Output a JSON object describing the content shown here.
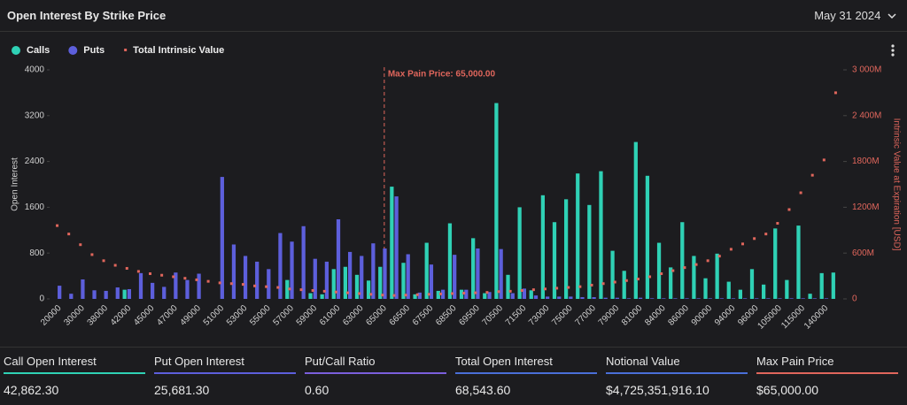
{
  "header": {
    "title": "Open Interest By Strike Price",
    "date": "May 31 2024"
  },
  "chart_data": {
    "type": "bar",
    "categories": [
      "20000",
      null,
      "30000",
      null,
      "38000",
      null,
      "42000",
      null,
      "45000",
      null,
      "47000",
      null,
      "49000",
      null,
      "51000",
      null,
      "53000",
      null,
      "55000",
      null,
      "57000",
      null,
      "59000",
      null,
      "61000",
      null,
      "63000",
      null,
      "65000",
      null,
      "66500",
      null,
      "67500",
      null,
      "68500",
      null,
      "69500",
      null,
      "70500",
      null,
      "71500",
      null,
      "73000",
      null,
      "75000",
      null,
      "77000",
      null,
      "79000",
      null,
      "81000",
      null,
      "84000",
      null,
      "86000",
      null,
      "90000",
      null,
      "94000",
      null,
      "96000",
      null,
      "105000",
      null,
      "115000",
      null,
      "140000",
      null
    ],
    "series": [
      {
        "name": "Calls",
        "color": "#2fd1b5",
        "values": [
          0,
          0,
          0,
          0,
          0,
          0,
          160,
          0,
          0,
          0,
          0,
          0,
          0,
          0,
          0,
          0,
          0,
          0,
          0,
          0,
          330,
          0,
          100,
          80,
          520,
          560,
          420,
          320,
          560,
          1960,
          630,
          80,
          980,
          140,
          1320,
          160,
          1060,
          100,
          3420,
          420,
          1600,
          150,
          1810,
          1340,
          1740,
          2190,
          1640,
          2230,
          840,
          490,
          2740,
          2150,
          980,
          550,
          1340,
          750,
          360,
          790,
          300,
          160,
          520,
          250,
          1230,
          330,
          1280,
          90,
          450,
          460
        ]
      },
      {
        "name": "Puts",
        "color": "#5d5fdc",
        "values": [
          230,
          90,
          340,
          150,
          140,
          200,
          170,
          450,
          280,
          210,
          460,
          330,
          440,
          0,
          2130,
          950,
          750,
          650,
          520,
          1150,
          1000,
          1270,
          700,
          650,
          1390,
          820,
          750,
          970,
          880,
          1790,
          780,
          110,
          600,
          160,
          770,
          160,
          880,
          120,
          870,
          100,
          180,
          60,
          40,
          40,
          40,
          30,
          30,
          20,
          20,
          10,
          20,
          10,
          10,
          10,
          10,
          10,
          10,
          10,
          10,
          10,
          10,
          10,
          10,
          10,
          10,
          10,
          10,
          0
        ]
      },
      {
        "name": "Total Intrinsic Value",
        "color": "#e0665c",
        "type": "scatter",
        "axis": "y2",
        "values": [
          960,
          850,
          710,
          580,
          500,
          440,
          400,
          360,
          330,
          310,
          290,
          270,
          250,
          230,
          210,
          200,
          190,
          170,
          160,
          150,
          130,
          120,
          110,
          100,
          90,
          80,
          70,
          60,
          50,
          45,
          50,
          55,
          60,
          65,
          70,
          75,
          80,
          85,
          95,
          100,
          110,
          120,
          130,
          140,
          150,
          160,
          180,
          200,
          220,
          240,
          260,
          290,
          330,
          370,
          410,
          450,
          500,
          560,
          650,
          720,
          790,
          850,
          990,
          1170,
          1390,
          1620,
          1820,
          2700
        ]
      }
    ],
    "ylabel": "Open Interest",
    "y2label": "Intrinsic Value at Expiration [USD]",
    "ylim": [
      0,
      4000
    ],
    "yticks": [
      0,
      800,
      1600,
      2400,
      3200,
      4000
    ],
    "y2lim": [
      0,
      3000
    ],
    "y2ticks": [
      0,
      {
        "value": 600,
        "label": "600M"
      },
      {
        "value": 1200,
        "label": "1200M"
      },
      {
        "value": 1800,
        "label": "1800M"
      },
      {
        "value": 2400,
        "label": "2 400M"
      },
      {
        "value": 3000,
        "label": "3 000M"
      }
    ],
    "legend": "top-left",
    "annotation": {
      "text": "Max Pain Price: 65,000.00",
      "x": "65000"
    }
  },
  "stats": [
    {
      "label": "Call Open Interest",
      "value": "42,862.30"
    },
    {
      "label": "Put Open Interest",
      "value": "25,681.30"
    },
    {
      "label": "Put/Call Ratio",
      "value": "0.60"
    },
    {
      "label": "Total Open Interest",
      "value": "68,543.60"
    },
    {
      "label": "Notional Value",
      "value": "$4,725,351,916.10"
    },
    {
      "label": "Max Pain Price",
      "value": "$65,000.00"
    }
  ]
}
